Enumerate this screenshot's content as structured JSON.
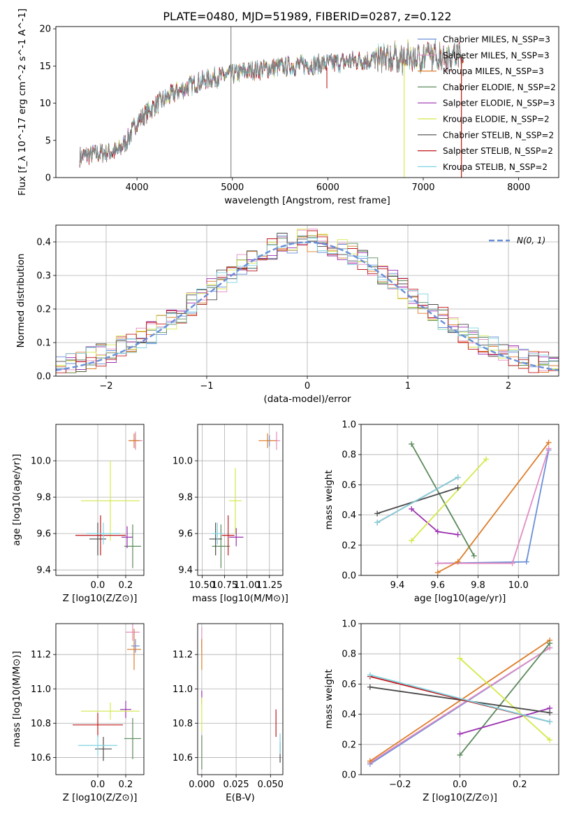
{
  "figure_title": "PLATE=0480, MJD=51989, FIBERID=0287, z=0.122",
  "chart_data": [
    {
      "id": "spectrum",
      "type": "line",
      "xlabel": "wavelength [Angstrom, rest frame]",
      "ylabel": "Flux [f_λ 10^-17 erg cm^-2 s^-1 A^-1]",
      "xlim": [
        3150,
        8420
      ],
      "ylim": [
        0,
        20.3
      ],
      "xticks": [
        4000,
        5000,
        6000,
        7000,
        8000
      ],
      "yticks": [
        0,
        5,
        10,
        15,
        20
      ],
      "legend_position": "top-right",
      "continuum_x": [
        3400,
        3600,
        3800,
        3900,
        4000,
        4200,
        4400,
        4600,
        4800,
        5000,
        5200,
        5400,
        5600,
        5800,
        6000,
        6200,
        6400,
        6600,
        6800,
        7000,
        7200,
        7400
      ],
      "continuum_y": [
        2.8,
        3.3,
        3.5,
        5.0,
        7.5,
        9.8,
        11.4,
        12.6,
        13.4,
        13.9,
        14.4,
        14.7,
        15.0,
        15.2,
        15.3,
        15.6,
        15.8,
        16.0,
        16.0,
        16.2,
        16.4,
        16.5
      ],
      "series": [
        {
          "name": "Chabrier MILES, N_SSP=3",
          "color": "#6a8fd8"
        },
        {
          "name": "Salpeter MILES, N_SSP=3",
          "color": "#e28cc2"
        },
        {
          "name": "Kroupa MILES, N_SSP=3",
          "color": "#de7d2a"
        },
        {
          "name": "Chabrier ELODIE, N_SSP=2",
          "color": "#5b8a5b"
        },
        {
          "name": "Salpeter ELODIE, N_SSP=3",
          "color": "#9a2fb0"
        },
        {
          "name": "Kroupa ELODIE, N_SSP=2",
          "color": "#d4e84a"
        },
        {
          "name": "Chabrier STELIB, N_SSP=2",
          "color": "#4a4a4a"
        },
        {
          "name": "Salpeter STELIB, N_SSP=2",
          "color": "#c0181c"
        },
        {
          "name": "Kroupa STELIB, N_SSP=2",
          "color": "#7fd4e0"
        }
      ]
    },
    {
      "id": "residuals",
      "type": "line",
      "xlabel": "(data-model)/error",
      "ylabel": "Normed distribution",
      "xlim": [
        -2.5,
        2.5
      ],
      "ylim": [
        0,
        0.45
      ],
      "xticks": [
        -2,
        -1,
        0,
        1,
        2
      ],
      "yticks": [
        0.0,
        0.1,
        0.2,
        0.3,
        0.4
      ],
      "legend_label": "N(0, 1)",
      "legend_position": "top-right",
      "reference_color": "#6a8fd8"
    },
    {
      "id": "age_vs_Z",
      "type": "scatter",
      "xlabel": "Z [log10(Z/Z⊙)]",
      "ylabel": "age  [log10(age/yr)]",
      "xlim": [
        -0.3,
        0.33
      ],
      "ylim": [
        9.37,
        10.2
      ],
      "xticks": [
        0.0,
        0.2
      ],
      "yticks": [
        9.4,
        9.6,
        9.8,
        10.0
      ],
      "points": [
        {
          "x": 0.27,
          "y": 10.11,
          "xerr": 0.04,
          "yerr": 0.04,
          "color": "#6a8fd8"
        },
        {
          "x": 0.27,
          "y": 10.11,
          "xerr": 0.05,
          "yerr": 0.05,
          "color": "#e28cc2"
        },
        {
          "x": 0.26,
          "y": 10.11,
          "xerr": 0.04,
          "yerr": 0.04,
          "color": "#de7d2a"
        },
        {
          "x": 0.25,
          "y": 9.53,
          "xerr": 0.06,
          "yerr": 0.12,
          "color": "#5b8a5b"
        },
        {
          "x": 0.21,
          "y": 9.58,
          "xerr": 0.04,
          "yerr": 0.06,
          "color": "#9a2fb0"
        },
        {
          "x": 0.09,
          "y": 9.78,
          "xerr": 0.21,
          "yerr": 0.22,
          "color": "#d4e84a"
        },
        {
          "x": 0.0,
          "y": 9.57,
          "xerr": 0.06,
          "yerr": 0.09,
          "color": "#4a4a4a"
        },
        {
          "x": 0.02,
          "y": 9.59,
          "xerr": 0.18,
          "yerr": 0.11,
          "color": "#c0181c"
        },
        {
          "x": 0.04,
          "y": 9.6,
          "xerr": 0.12,
          "yerr": 0.06,
          "color": "#7fd4e0"
        }
      ]
    },
    {
      "id": "age_vs_mass",
      "type": "scatter",
      "xlabel": "mass [log10(M/M⊙)]",
      "ylabel": "",
      "xlim": [
        10.45,
        11.4
      ],
      "ylim": [
        9.37,
        10.2
      ],
      "xticks": [
        10.5,
        10.75,
        11.0,
        11.25
      ],
      "yticks": [
        9.4,
        9.6,
        9.8,
        10.0
      ],
      "points": [
        {
          "x": 11.25,
          "y": 10.11,
          "xerr": 0.03,
          "yerr": 0.03,
          "color": "#6a8fd8"
        },
        {
          "x": 11.33,
          "y": 10.11,
          "xerr": 0.04,
          "yerr": 0.05,
          "color": "#e28cc2"
        },
        {
          "x": 11.23,
          "y": 10.11,
          "xerr": 0.1,
          "yerr": 0.04,
          "color": "#de7d2a"
        },
        {
          "x": 10.71,
          "y": 9.53,
          "xerr": 0.1,
          "yerr": 0.12,
          "color": "#5b8a5b"
        },
        {
          "x": 10.88,
          "y": 9.58,
          "xerr": 0.08,
          "yerr": 0.05,
          "color": "#9a2fb0"
        },
        {
          "x": 10.87,
          "y": 9.78,
          "xerr": 0.07,
          "yerr": 0.18,
          "color": "#d4e84a"
        },
        {
          "x": 10.65,
          "y": 9.57,
          "xerr": 0.07,
          "yerr": 0.09,
          "color": "#4a4a4a"
        },
        {
          "x": 10.79,
          "y": 9.59,
          "xerr": 0.07,
          "yerr": 0.11,
          "color": "#c0181c"
        },
        {
          "x": 10.67,
          "y": 9.6,
          "xerr": 0.06,
          "yerr": 0.06,
          "color": "#7fd4e0"
        }
      ]
    },
    {
      "id": "weight_vs_age",
      "type": "line",
      "xlabel": "age  [log10(age/yr)]",
      "ylabel": "mass weight",
      "xlim": [
        9.22,
        10.2
      ],
      "ylim": [
        0,
        1.0
      ],
      "xticks": [
        9.4,
        9.6,
        9.8,
        10.0
      ],
      "yticks": [
        0.0,
        0.2,
        0.4,
        0.6,
        0.8,
        1.0
      ],
      "series": [
        {
          "color": "#6a8fd8",
          "x": [
            9.6,
            10.04,
            10.15
          ],
          "y": [
            0.08,
            0.09,
            0.83
          ]
        },
        {
          "color": "#e28cc2",
          "x": [
            9.6,
            9.97,
            10.15
          ],
          "y": [
            0.08,
            0.08,
            0.84
          ]
        },
        {
          "color": "#de7d2a",
          "x": [
            9.6,
            9.7,
            10.15
          ],
          "y": [
            0.02,
            0.09,
            0.88
          ]
        },
        {
          "color": "#5b8a5b",
          "x": [
            9.47,
            9.78
          ],
          "y": [
            0.87,
            0.13
          ]
        },
        {
          "color": "#9a2fb0",
          "x": [
            9.47,
            9.6,
            9.7
          ],
          "y": [
            0.44,
            0.29,
            0.27
          ]
        },
        {
          "color": "#d4e84a",
          "x": [
            9.47,
            9.84
          ],
          "y": [
            0.23,
            0.77
          ]
        },
        {
          "color": "#4a4a4a",
          "x": [
            9.3,
            9.7
          ],
          "y": [
            0.41,
            0.58
          ]
        },
        {
          "color": "#c0181c",
          "x": [
            9.3,
            9.7
          ],
          "y": [
            0.35,
            0.65
          ]
        },
        {
          "color": "#7fd4e0",
          "x": [
            9.3,
            9.7
          ],
          "y": [
            0.35,
            0.65
          ]
        }
      ]
    },
    {
      "id": "mass_vs_Z",
      "type": "scatter",
      "xlabel": "Z [log10(Z/Z⊙)]",
      "ylabel": "mass [log10(M/M⊙)]",
      "xlim": [
        -0.3,
        0.33
      ],
      "ylim": [
        10.5,
        11.38
      ],
      "xticks": [
        0.0,
        0.2
      ],
      "yticks": [
        10.6,
        10.8,
        11.0,
        11.2
      ],
      "points": [
        {
          "x": 0.27,
          "y": 11.25,
          "xerr": 0.03,
          "yerr": 0.04,
          "color": "#6a8fd8"
        },
        {
          "x": 0.25,
          "y": 11.33,
          "xerr": 0.05,
          "yerr": 0.05,
          "color": "#e28cc2"
        },
        {
          "x": 0.26,
          "y": 11.23,
          "xerr": 0.05,
          "yerr": 0.12,
          "color": "#de7d2a"
        },
        {
          "x": 0.25,
          "y": 10.71,
          "xerr": 0.06,
          "yerr": 0.12,
          "color": "#5b8a5b"
        },
        {
          "x": 0.2,
          "y": 10.88,
          "xerr": 0.04,
          "yerr": 0.05,
          "color": "#9a2fb0"
        },
        {
          "x": 0.09,
          "y": 10.87,
          "xerr": 0.21,
          "yerr": 0.05,
          "color": "#d4e84a"
        },
        {
          "x": 0.04,
          "y": 10.65,
          "xerr": 0.06,
          "yerr": 0.07,
          "color": "#4a4a4a"
        },
        {
          "x": 0.0,
          "y": 10.79,
          "xerr": 0.18,
          "yerr": 0.07,
          "color": "#c0181c"
        },
        {
          "x": 0.0,
          "y": 10.67,
          "xerr": 0.14,
          "yerr": 0.06,
          "color": "#7fd4e0"
        }
      ]
    },
    {
      "id": "mass_vs_ebv",
      "type": "scatter",
      "xlabel": "E(B-V)",
      "ylabel": "",
      "xlim": [
        -0.003,
        0.059
      ],
      "ylim": [
        10.5,
        11.38
      ],
      "xticks": [
        0.0,
        0.025,
        0.05
      ],
      "yticks": [
        10.6,
        10.8,
        11.0,
        11.2
      ],
      "points": [
        {
          "x": 0.0,
          "y": 11.25,
          "xerr": 0.0,
          "yerr": 0.04,
          "color": "#6a8fd8"
        },
        {
          "x": 0.0,
          "y": 11.3,
          "xerr": 0.0,
          "yerr": 0.06,
          "color": "#e28cc2"
        },
        {
          "x": 0.0,
          "y": 11.2,
          "xerr": 0.0,
          "yerr": 0.09,
          "color": "#de7d2a"
        },
        {
          "x": 0.0,
          "y": 10.63,
          "xerr": 0.0,
          "yerr": 0.1,
          "color": "#5b8a5b"
        },
        {
          "x": 0.0,
          "y": 10.95,
          "xerr": 0.0,
          "yerr": 0.04,
          "color": "#9a2fb0"
        },
        {
          "x": 0.0,
          "y": 10.85,
          "xerr": 0.0,
          "yerr": 0.1,
          "color": "#d4e84a"
        },
        {
          "x": 0.057,
          "y": 10.63,
          "xerr": 0.0,
          "yerr": 0.06,
          "color": "#4a4a4a"
        },
        {
          "x": 0.054,
          "y": 10.8,
          "xerr": 0.0,
          "yerr": 0.08,
          "color": "#c0181c"
        },
        {
          "x": 0.057,
          "y": 10.68,
          "xerr": 0.0,
          "yerr": 0.06,
          "color": "#7fd4e0"
        }
      ]
    },
    {
      "id": "weight_vs_Z",
      "type": "line",
      "xlabel": "Z [log10(Z/Z⊙)]",
      "ylabel": "mass weight",
      "xlim": [
        -0.33,
        0.33
      ],
      "ylim": [
        0,
        1.0
      ],
      "xticks": [
        -0.2,
        0.0,
        0.2
      ],
      "yticks": [
        0.0,
        0.2,
        0.4,
        0.6,
        0.8,
        1.0
      ],
      "series": [
        {
          "color": "#6a8fd8",
          "x": [
            -0.3,
            0.3
          ],
          "y": [
            0.07,
            0.84
          ]
        },
        {
          "color": "#e28cc2",
          "x": [
            -0.3,
            0.3
          ],
          "y": [
            0.08,
            0.84
          ]
        },
        {
          "color": "#de7d2a",
          "x": [
            -0.3,
            0.3
          ],
          "y": [
            0.09,
            0.89
          ]
        },
        {
          "color": "#5b8a5b",
          "x": [
            0.0,
            0.3
          ],
          "y": [
            0.13,
            0.87
          ]
        },
        {
          "color": "#9a2fb0",
          "x": [
            0.0,
            0.3
          ],
          "y": [
            0.27,
            0.44
          ]
        },
        {
          "color": "#d4e84a",
          "x": [
            0.0,
            0.3
          ],
          "y": [
            0.77,
            0.23
          ]
        },
        {
          "color": "#4a4a4a",
          "x": [
            -0.3,
            0.3
          ],
          "y": [
            0.58,
            0.41
          ]
        },
        {
          "color": "#c0181c",
          "x": [
            -0.3,
            0.3
          ],
          "y": [
            0.65,
            0.35
          ]
        },
        {
          "color": "#7fd4e0",
          "x": [
            -0.3,
            0.3
          ],
          "y": [
            0.66,
            0.35
          ]
        }
      ]
    }
  ]
}
